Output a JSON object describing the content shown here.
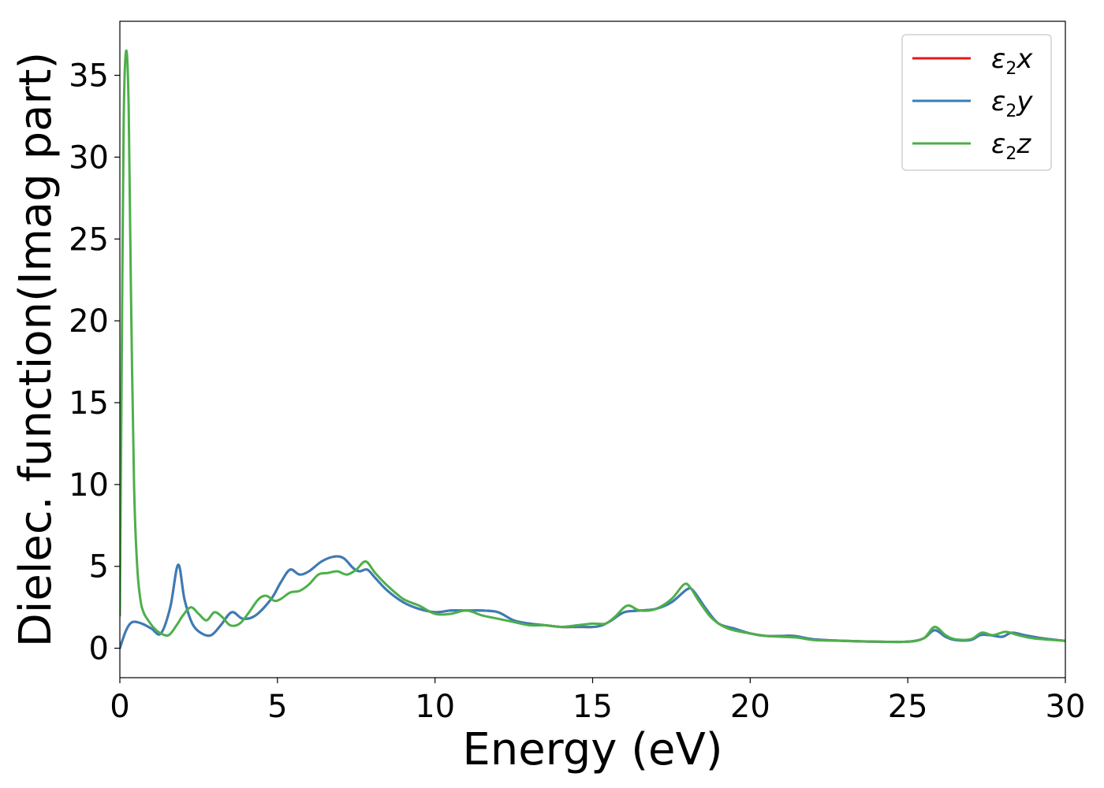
{
  "chart_data": {
    "type": "line",
    "title": "",
    "xlabel": "Energy (eV)",
    "ylabel": "Dielec. function(Imag part)",
    "xlim": [
      0,
      30
    ],
    "ylim": [
      -1.8,
      38.3
    ],
    "xticks": [
      0,
      5,
      10,
      15,
      20,
      25,
      30
    ],
    "yticks": [
      0,
      5,
      10,
      15,
      20,
      25,
      30,
      35
    ],
    "xtick_labels": [
      "0",
      "5",
      "10",
      "15",
      "20",
      "25",
      "30"
    ],
    "ytick_labels": [
      "0",
      "5",
      "10",
      "15",
      "20",
      "25",
      "30",
      "35"
    ],
    "grid": false,
    "legend_position": "top-right",
    "series": [
      {
        "name": "ε2x",
        "color": "#e41a1c",
        "x": [
          0,
          0.2,
          0.4,
          0.7,
          1.0,
          1.3,
          1.6,
          1.85,
          2.05,
          2.3,
          2.6,
          2.9,
          3.2,
          3.55,
          3.9,
          4.3,
          4.8,
          5.1,
          5.4,
          5.7,
          6.0,
          6.4,
          6.8,
          7.1,
          7.4,
          7.6,
          7.85,
          8.1,
          8.5,
          9.0,
          9.5,
          10.0,
          10.5,
          11.0,
          11.5,
          12.0,
          12.5,
          13.0,
          13.5,
          14.0,
          14.5,
          15.0,
          15.3,
          15.6,
          16.0,
          16.5,
          17.0,
          17.5,
          18.0,
          18.2,
          18.6,
          19.0,
          19.5,
          20.0,
          20.5,
          21.0,
          21.4,
          22.0,
          23.0,
          24.0,
          25.0,
          25.5,
          25.85,
          26.2,
          26.5,
          27.0,
          27.3,
          27.6,
          28.0,
          28.3,
          28.7,
          29.3,
          30.0
        ],
        "values": [
          0.0,
          1.1,
          1.6,
          1.5,
          1.2,
          0.9,
          2.5,
          5.1,
          3.0,
          1.5,
          0.9,
          0.8,
          1.4,
          2.2,
          1.8,
          2.0,
          3.0,
          4.0,
          4.8,
          4.5,
          4.7,
          5.3,
          5.6,
          5.5,
          4.9,
          4.7,
          4.8,
          4.3,
          3.5,
          2.8,
          2.4,
          2.2,
          2.3,
          2.3,
          2.3,
          2.2,
          1.7,
          1.5,
          1.4,
          1.3,
          1.3,
          1.3,
          1.4,
          1.7,
          2.2,
          2.3,
          2.4,
          2.8,
          3.6,
          3.5,
          2.4,
          1.5,
          1.2,
          0.9,
          0.75,
          0.75,
          0.75,
          0.55,
          0.45,
          0.4,
          0.4,
          0.6,
          1.1,
          0.7,
          0.5,
          0.5,
          0.8,
          0.8,
          0.7,
          0.95,
          0.8,
          0.6,
          0.45
        ]
      },
      {
        "name": "ε2y",
        "color": "#377eb8",
        "x": [
          0,
          0.2,
          0.4,
          0.7,
          1.0,
          1.3,
          1.6,
          1.85,
          2.05,
          2.3,
          2.6,
          2.9,
          3.2,
          3.55,
          3.9,
          4.3,
          4.8,
          5.1,
          5.4,
          5.7,
          6.0,
          6.4,
          6.8,
          7.1,
          7.4,
          7.6,
          7.85,
          8.1,
          8.5,
          9.0,
          9.5,
          10.0,
          10.5,
          11.0,
          11.5,
          12.0,
          12.5,
          13.0,
          13.5,
          14.0,
          14.5,
          15.0,
          15.3,
          15.6,
          16.0,
          16.5,
          17.0,
          17.5,
          18.0,
          18.2,
          18.6,
          19.0,
          19.5,
          20.0,
          20.5,
          21.0,
          21.4,
          22.0,
          23.0,
          24.0,
          25.0,
          25.5,
          25.85,
          26.2,
          26.5,
          27.0,
          27.3,
          27.6,
          28.0,
          28.3,
          28.7,
          29.3,
          30.0
        ],
        "values": [
          0.0,
          1.1,
          1.6,
          1.5,
          1.2,
          0.9,
          2.5,
          5.1,
          3.0,
          1.5,
          0.9,
          0.8,
          1.4,
          2.2,
          1.8,
          2.0,
          3.0,
          4.0,
          4.8,
          4.5,
          4.7,
          5.3,
          5.6,
          5.5,
          4.9,
          4.7,
          4.8,
          4.3,
          3.5,
          2.8,
          2.4,
          2.2,
          2.3,
          2.3,
          2.3,
          2.2,
          1.7,
          1.5,
          1.4,
          1.3,
          1.3,
          1.3,
          1.4,
          1.7,
          2.2,
          2.3,
          2.4,
          2.8,
          3.6,
          3.5,
          2.4,
          1.5,
          1.2,
          0.9,
          0.75,
          0.75,
          0.75,
          0.55,
          0.45,
          0.4,
          0.4,
          0.6,
          1.1,
          0.7,
          0.5,
          0.5,
          0.8,
          0.8,
          0.7,
          0.95,
          0.8,
          0.6,
          0.45
        ]
      },
      {
        "name": "ε2z",
        "color": "#4daf4a",
        "x": [
          0,
          0.05,
          0.12,
          0.2,
          0.28,
          0.35,
          0.45,
          0.55,
          0.65,
          0.75,
          0.9,
          1.1,
          1.3,
          1.55,
          1.8,
          2.0,
          2.25,
          2.5,
          2.75,
          3.0,
          3.25,
          3.5,
          3.8,
          4.1,
          4.4,
          4.65,
          4.9,
          5.1,
          5.4,
          5.7,
          6.0,
          6.3,
          6.6,
          6.9,
          7.2,
          7.5,
          7.8,
          8.1,
          8.5,
          9.0,
          9.5,
          10.0,
          10.5,
          11.0,
          11.5,
          12.0,
          12.5,
          13.0,
          13.5,
          14.0,
          14.5,
          15.0,
          15.4,
          15.7,
          16.1,
          16.5,
          17.0,
          17.5,
          17.9,
          18.1,
          18.4,
          18.8,
          19.3,
          20.0,
          20.5,
          21.0,
          21.5,
          22.0,
          23.0,
          24.0,
          25.0,
          25.5,
          25.85,
          26.2,
          26.5,
          27.0,
          27.35,
          27.7,
          28.1,
          28.5,
          29.0,
          30.0
        ],
        "values": [
          2.0,
          15.0,
          32.0,
          36.5,
          33.0,
          22.0,
          10.0,
          5.0,
          3.0,
          2.2,
          1.7,
          1.2,
          0.9,
          0.8,
          1.4,
          2.0,
          2.5,
          2.1,
          1.7,
          2.2,
          1.9,
          1.4,
          1.5,
          2.2,
          3.0,
          3.2,
          2.9,
          3.0,
          3.4,
          3.5,
          3.9,
          4.5,
          4.6,
          4.7,
          4.5,
          4.8,
          5.3,
          4.6,
          3.8,
          3.0,
          2.6,
          2.1,
          2.1,
          2.3,
          2.0,
          1.8,
          1.6,
          1.4,
          1.4,
          1.3,
          1.4,
          1.5,
          1.5,
          1.9,
          2.6,
          2.3,
          2.4,
          3.0,
          3.9,
          3.7,
          2.8,
          1.8,
          1.2,
          0.9,
          0.75,
          0.7,
          0.65,
          0.5,
          0.45,
          0.4,
          0.4,
          0.6,
          1.3,
          0.8,
          0.55,
          0.55,
          0.95,
          0.8,
          1.0,
          0.8,
          0.6,
          0.45
        ]
      }
    ]
  }
}
